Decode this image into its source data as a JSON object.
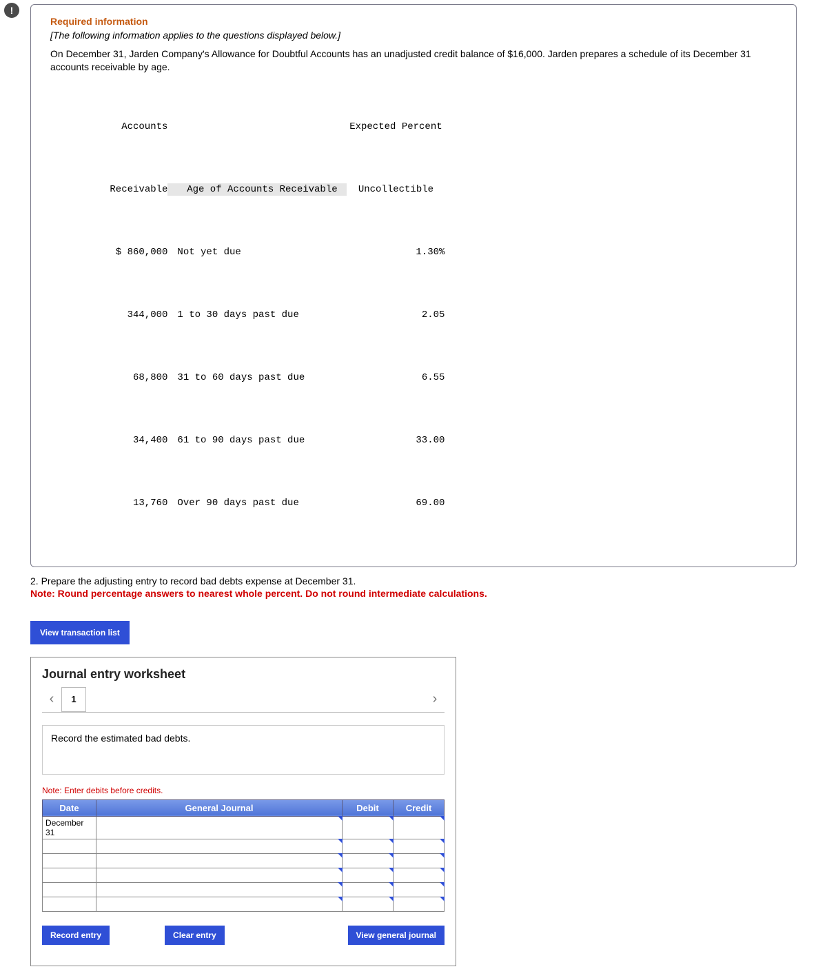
{
  "alert_icon_glyph": "!",
  "info": {
    "required_heading": "Required information",
    "italic_note": "[The following information applies to the questions displayed below.]",
    "body_text": "On December 31, Jarden Company's Allowance for Doubtful Accounts has an unadjusted credit balance of $16,000. Jarden prepares a schedule of its December 31 accounts receivable by age.",
    "aging_table": {
      "headers": {
        "ar": "Accounts\nReceivable",
        "age": "Age of Accounts Receivable",
        "pct": "Expected Percent\nUncollectible"
      },
      "rows": [
        {
          "ar": "$ 860,000",
          "age": "Not yet due",
          "pct": "1.30%"
        },
        {
          "ar": "344,000",
          "age": "1 to 30 days past due",
          "pct": "2.05"
        },
        {
          "ar": "68,800",
          "age": "31 to 60 days past due",
          "pct": "6.55"
        },
        {
          "ar": "34,400",
          "age": "61 to 90 days past due",
          "pct": "33.00"
        },
        {
          "ar": "13,760",
          "age": "Over 90 days past due",
          "pct": "69.00"
        }
      ]
    }
  },
  "question": {
    "text": "2. Prepare the adjusting entry to record bad debts expense at December 31.",
    "note": "Note: Round percentage answers to nearest whole percent. Do not round intermediate calculations."
  },
  "view_txn_btn": "View transaction list",
  "journal": {
    "title": "Journal entry worksheet",
    "tab_label": "1",
    "entry_desc": "Record the estimated bad debts.",
    "note_debits": "Note: Enter debits before credits.",
    "headers": {
      "date": "Date",
      "gj": "General Journal",
      "debit": "Debit",
      "credit": "Credit"
    },
    "first_date": "December 31",
    "bottom_buttons": {
      "record": "Record entry",
      "clear": "Clear entry",
      "view_gj": "View general journal"
    }
  }
}
